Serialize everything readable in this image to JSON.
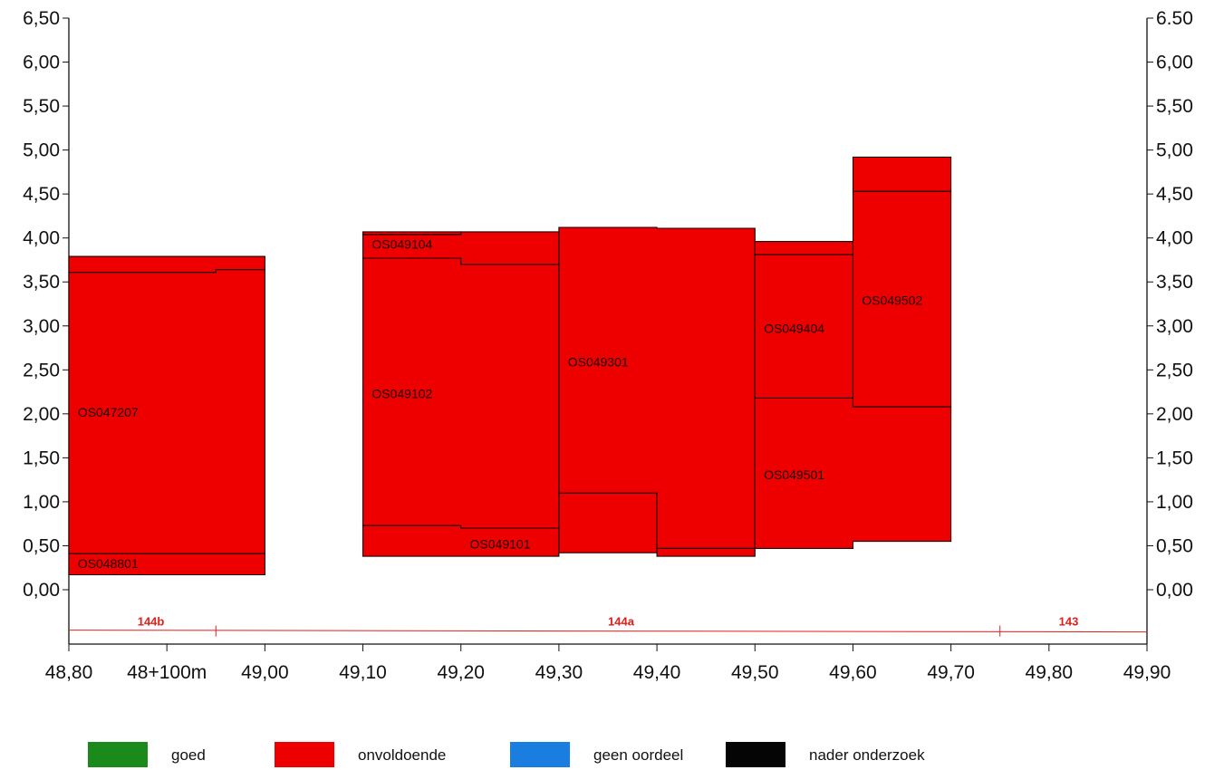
{
  "chart_data": {
    "type": "area",
    "title": "",
    "xlabel": "",
    "ylabel": "",
    "xlim": [
      48.8,
      49.9
    ],
    "ylim": [
      -0.6,
      6.5
    ],
    "x_ticks": [
      {
        "value": 48.8,
        "label": "48,80"
      },
      {
        "value": 48.9,
        "label": "48+100m"
      },
      {
        "value": 49.0,
        "label": "49,00"
      },
      {
        "value": 49.1,
        "label": "49,10"
      },
      {
        "value": 49.2,
        "label": "49,20"
      },
      {
        "value": 49.3,
        "label": "49,30"
      },
      {
        "value": 49.4,
        "label": "49,40"
      },
      {
        "value": 49.5,
        "label": "49,50"
      },
      {
        "value": 49.6,
        "label": "49,60"
      },
      {
        "value": 49.7,
        "label": "49,70"
      },
      {
        "value": 49.8,
        "label": "49,80"
      },
      {
        "value": 49.9,
        "label": "49,90"
      }
    ],
    "y_ticks_left": [
      {
        "value": 0.0,
        "label": "0,00"
      },
      {
        "value": 0.5,
        "label": "0,50"
      },
      {
        "value": 1.0,
        "label": "1,00"
      },
      {
        "value": 1.5,
        "label": "1,50"
      },
      {
        "value": 2.0,
        "label": "2,00"
      },
      {
        "value": 2.5,
        "label": "2,50"
      },
      {
        "value": 3.0,
        "label": "3,00"
      },
      {
        "value": 3.5,
        "label": "3,50"
      },
      {
        "value": 4.0,
        "label": "4,00"
      },
      {
        "value": 4.5,
        "label": "4,50"
      },
      {
        "value": 5.0,
        "label": "5,00"
      },
      {
        "value": 5.5,
        "label": "5,50"
      },
      {
        "value": 6.0,
        "label": "6,00"
      },
      {
        "value": 6.5,
        "label": "6,50"
      }
    ],
    "y_ticks_right": [
      {
        "value": 0.0,
        "label": "0,00"
      },
      {
        "value": 0.5,
        "label": "0,50"
      },
      {
        "value": 1.0,
        "label": "1,00"
      },
      {
        "value": 1.5,
        "label": "1,50"
      },
      {
        "value": 2.0,
        "label": "2,00"
      },
      {
        "value": 2.5,
        "label": "2,50"
      },
      {
        "value": 3.0,
        "label": "3,00"
      },
      {
        "value": 3.5,
        "label": "3,50"
      },
      {
        "value": 4.0,
        "label": "4,00"
      },
      {
        "value": 4.5,
        "label": "4,50"
      },
      {
        "value": 5.0,
        "label": "5,00"
      },
      {
        "value": 5.5,
        "label": "5,50"
      },
      {
        "value": 6.0,
        "label": "6,00"
      },
      {
        "value": 6.5,
        "label": "6.50"
      }
    ],
    "fill_color": "#ee0000",
    "blocks": [
      {
        "id": "OS048801",
        "label_at": [
          48.81,
          0.3
        ],
        "polygon": [
          [
            48.8,
            0.17
          ],
          [
            48.95,
            0.17
          ],
          [
            48.95,
            0.17
          ],
          [
            49.0,
            0.17
          ],
          [
            49.0,
            0.41
          ],
          [
            48.8,
            0.41
          ]
        ]
      },
      {
        "id": "OS047207",
        "label_at": [
          48.81,
          2.02
        ],
        "polygon": [
          [
            48.8,
            0.41
          ],
          [
            49.0,
            0.41
          ],
          [
            49.0,
            3.64
          ],
          [
            48.95,
            3.64
          ],
          [
            48.95,
            3.61
          ],
          [
            48.8,
            3.61
          ]
        ]
      },
      {
        "id": "",
        "label_at": null,
        "polygon": [
          [
            48.8,
            3.61
          ],
          [
            48.95,
            3.61
          ],
          [
            48.95,
            3.64
          ],
          [
            49.0,
            3.64
          ],
          [
            49.0,
            3.79
          ],
          [
            48.8,
            3.79
          ]
        ]
      },
      {
        "id": "OS049101",
        "label_at": [
          49.21,
          0.52
        ],
        "polygon": [
          [
            49.1,
            0.38
          ],
          [
            49.3,
            0.38
          ],
          [
            49.3,
            0.7
          ],
          [
            49.2,
            0.7
          ],
          [
            49.2,
            0.73
          ],
          [
            49.1,
            0.73
          ]
        ]
      },
      {
        "id": "OS049102",
        "label_at": [
          49.11,
          2.23
        ],
        "polygon": [
          [
            49.1,
            0.73
          ],
          [
            49.2,
            0.73
          ],
          [
            49.2,
            0.7
          ],
          [
            49.3,
            0.7
          ],
          [
            49.3,
            3.7
          ],
          [
            49.2,
            3.7
          ],
          [
            49.2,
            3.77
          ],
          [
            49.1,
            3.77
          ]
        ]
      },
      {
        "id": "OS049104",
        "label_at": [
          49.11,
          3.93
        ],
        "polygon": [
          [
            49.1,
            3.77
          ],
          [
            49.2,
            3.77
          ],
          [
            49.2,
            3.7
          ],
          [
            49.3,
            3.7
          ],
          [
            49.3,
            4.07
          ],
          [
            49.2,
            4.07
          ],
          [
            49.2,
            4.04
          ],
          [
            49.1,
            4.04
          ]
        ]
      },
      {
        "id": "",
        "label_at": null,
        "polygon": [
          [
            49.1,
            4.04
          ],
          [
            49.2,
            4.04
          ],
          [
            49.2,
            4.07
          ],
          [
            49.1,
            4.07
          ]
        ]
      },
      {
        "id": "",
        "label_at": null,
        "polygon": [
          [
            49.3,
            0.42
          ],
          [
            49.4,
            0.42
          ],
          [
            49.4,
            1.1
          ],
          [
            49.3,
            1.1
          ]
        ]
      },
      {
        "id": "OS049301",
        "label_at": [
          49.31,
          2.59
        ],
        "polygon": [
          [
            49.3,
            1.1
          ],
          [
            49.4,
            1.1
          ],
          [
            49.4,
            0.47
          ],
          [
            49.5,
            0.47
          ],
          [
            49.5,
            4.11
          ],
          [
            49.4,
            4.11
          ],
          [
            49.4,
            4.12
          ],
          [
            49.3,
            4.12
          ]
        ]
      },
      {
        "id": "",
        "label_at": null,
        "polygon": [
          [
            49.4,
            0.38
          ],
          [
            49.5,
            0.38
          ],
          [
            49.5,
            0.47
          ],
          [
            49.4,
            0.47
          ]
        ]
      },
      {
        "id": "OS049501",
        "label_at": [
          49.51,
          1.31
        ],
        "polygon": [
          [
            49.5,
            0.47
          ],
          [
            49.6,
            0.47
          ],
          [
            49.6,
            0.55
          ],
          [
            49.7,
            0.55
          ],
          [
            49.7,
            2.08
          ],
          [
            49.6,
            2.08
          ],
          [
            49.6,
            2.18
          ],
          [
            49.5,
            2.18
          ]
        ]
      },
      {
        "id": "OS049404",
        "label_at": [
          49.51,
          2.97
        ],
        "polygon": [
          [
            49.5,
            2.18
          ],
          [
            49.6,
            2.18
          ],
          [
            49.6,
            3.81
          ],
          [
            49.5,
            3.81
          ]
        ]
      },
      {
        "id": "",
        "label_at": null,
        "polygon": [
          [
            49.5,
            3.81
          ],
          [
            49.6,
            3.81
          ],
          [
            49.6,
            3.96
          ],
          [
            49.5,
            3.96
          ]
        ]
      },
      {
        "id": "OS049502",
        "label_at": [
          49.61,
          3.29
        ],
        "polygon": [
          [
            49.6,
            2.08
          ],
          [
            49.7,
            2.08
          ],
          [
            49.7,
            4.53
          ],
          [
            49.6,
            4.53
          ]
        ]
      },
      {
        "id": "",
        "label_at": null,
        "polygon": [
          [
            49.6,
            4.53
          ],
          [
            49.7,
            4.53
          ],
          [
            49.7,
            4.92
          ],
          [
            49.6,
            4.92
          ]
        ]
      }
    ],
    "sections": [
      {
        "label": "144b",
        "x_label": 48.87,
        "x_end_mark": 48.95
      },
      {
        "label": "144a",
        "x_label": 49.35,
        "x_end_mark": 49.75
      },
      {
        "label": "143",
        "x_label": 49.81,
        "x_end_mark": null
      }
    ],
    "section_line_y": -0.47,
    "section_color": "#e0201a",
    "legend": [
      {
        "label": "goed",
        "color": "#1a8a1a"
      },
      {
        "label": "onvoldoende",
        "color": "#ee0000"
      },
      {
        "label": "geen oordeel",
        "color": "#1a7ee0"
      },
      {
        "label": "nader onderzoek",
        "color": "#050505"
      }
    ],
    "legend_placement": "bottom"
  }
}
